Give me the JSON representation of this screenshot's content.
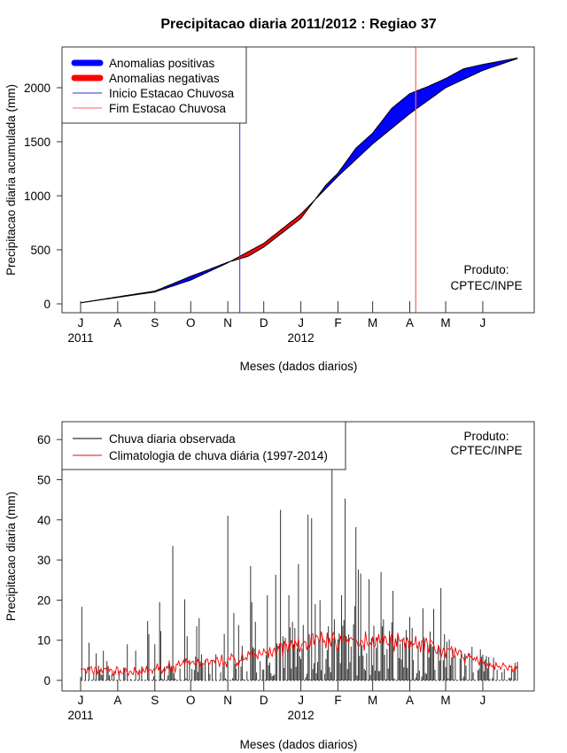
{
  "chart_data": [
    {
      "type": "area",
      "title": "Precipitacao diaria 2011/2012 : Regiao 37",
      "xlabel": "Meses (dados diarios)",
      "ylabel": "Precipitacao diaria acumulada (mm)",
      "ylim": [
        0,
        2300
      ],
      "yticks": [
        0,
        500,
        1000,
        1500,
        2000
      ],
      "xtick_labels": [
        "J",
        "A",
        "S",
        "O",
        "N",
        "D",
        "J",
        "F",
        "M",
        "A",
        "M",
        "J"
      ],
      "xtick_days": [
        0,
        31,
        62,
        92,
        123,
        153,
        184,
        215,
        244,
        275,
        305,
        336
      ],
      "year_labels": [
        {
          "label": "2011",
          "day": 0
        },
        {
          "label": "2012",
          "day": 184
        }
      ],
      "legend": [
        "Anomalias positivas",
        "Anomalias negativas",
        "Inicio Estacao Chuvosa",
        "Fim Estacao Chuvosa"
      ],
      "legend_placement": "top-left",
      "annotation": [
        "Produto:",
        "CPTEC/INPE"
      ],
      "colors": {
        "positive": "#0000ff",
        "negative": "#ff0000",
        "start": "#0000cc",
        "end": "#ff4040"
      },
      "rainy_season_start_day": 133,
      "rainy_season_end_day": 280,
      "observed_cumulative": [
        [
          0,
          10
        ],
        [
          31,
          65
        ],
        [
          62,
          118
        ],
        [
          92,
          255
        ],
        [
          110,
          330
        ],
        [
          123,
          385
        ],
        [
          140,
          440
        ],
        [
          153,
          525
        ],
        [
          184,
          790
        ],
        [
          205,
          1100
        ],
        [
          215,
          1210
        ],
        [
          230,
          1440
        ],
        [
          244,
          1580
        ],
        [
          260,
          1810
        ],
        [
          275,
          1945
        ],
        [
          290,
          2010
        ],
        [
          305,
          2085
        ],
        [
          320,
          2175
        ],
        [
          336,
          2215
        ],
        [
          365,
          2275
        ]
      ],
      "climatology_cumulative": [
        [
          0,
          10
        ],
        [
          31,
          60
        ],
        [
          62,
          110
        ],
        [
          92,
          220
        ],
        [
          123,
          380
        ],
        [
          153,
          560
        ],
        [
          184,
          830
        ],
        [
          215,
          1180
        ],
        [
          244,
          1480
        ],
        [
          275,
          1760
        ],
        [
          305,
          2000
        ],
        [
          336,
          2160
        ],
        [
          365,
          2270
        ]
      ]
    },
    {
      "type": "bar",
      "xlabel": "Meses (dados diarios)",
      "ylabel": "Precipitacao diaria (mm)",
      "ylim": [
        0,
        62
      ],
      "yticks": [
        0,
        10,
        20,
        30,
        40,
        50,
        60
      ],
      "xtick_labels": [
        "J",
        "A",
        "S",
        "O",
        "N",
        "D",
        "J",
        "F",
        "M",
        "A",
        "M",
        "J"
      ],
      "xtick_days": [
        0,
        31,
        62,
        92,
        123,
        153,
        184,
        215,
        244,
        275,
        305,
        336
      ],
      "year_labels": [
        {
          "label": "2011",
          "day": 0
        },
        {
          "label": "2012",
          "day": 184
        }
      ],
      "legend": [
        "Chuva diaria observada",
        "Climatologia de chuva diária (1997-2014)"
      ],
      "legend_placement": "top-left",
      "annotation": [
        "Produto:",
        "CPTEC/INPE"
      ],
      "colors": {
        "observed": "#000000",
        "climatology": "#ff0000"
      },
      "climatology_monthly_mean": [
        2.5,
        2.0,
        3.5,
        4.5,
        5.5,
        8.0,
        10.0,
        9.5,
        10.0,
        8.5,
        6.0,
        3.0
      ],
      "observed_peaks": [
        [
          1,
          18.3
        ],
        [
          7,
          9.4
        ],
        [
          13,
          6.7
        ],
        [
          19,
          7.4
        ],
        [
          22,
          4.8
        ],
        [
          39,
          9
        ],
        [
          46,
          7.4
        ],
        [
          56,
          14.8
        ],
        [
          57,
          11.5
        ],
        [
          62,
          9
        ],
        [
          66,
          19.5
        ],
        [
          67,
          12.3
        ],
        [
          77,
          33.5
        ],
        [
          87,
          20.2
        ],
        [
          89,
          11
        ],
        [
          97,
          13.5
        ],
        [
          99,
          15.5
        ],
        [
          120,
          11.6
        ],
        [
          123,
          41
        ],
        [
          128,
          16.8
        ],
        [
          132,
          13.8
        ],
        [
          142,
          28.5
        ],
        [
          143,
          19.5
        ],
        [
          146,
          14.6
        ],
        [
          156,
          21.2
        ],
        [
          163,
          26.3
        ],
        [
          167,
          42.5
        ],
        [
          174,
          21.2
        ],
        [
          177,
          14.6
        ],
        [
          182,
          29
        ],
        [
          190,
          41.3
        ],
        [
          193,
          40.4
        ],
        [
          196,
          19
        ],
        [
          200,
          20
        ],
        [
          207,
          13.5
        ],
        [
          210,
          61.4
        ],
        [
          212,
          15.2
        ],
        [
          218,
          21.2
        ],
        [
          221,
          45.3
        ],
        [
          229,
          18.5
        ],
        [
          230,
          38.2
        ],
        [
          232,
          27.6
        ],
        [
          234,
          26.6
        ],
        [
          241,
          25.2
        ],
        [
          245,
          13.6
        ],
        [
          251,
          27
        ],
        [
          261,
          22.3
        ],
        [
          275,
          15.8
        ],
        [
          286,
          18
        ],
        [
          295,
          17.8
        ],
        [
          301,
          23
        ],
        [
          304,
          11.5
        ],
        [
          325,
          6.8
        ],
        [
          334,
          7.7
        ],
        [
          336,
          6.4
        ]
      ]
    }
  ]
}
